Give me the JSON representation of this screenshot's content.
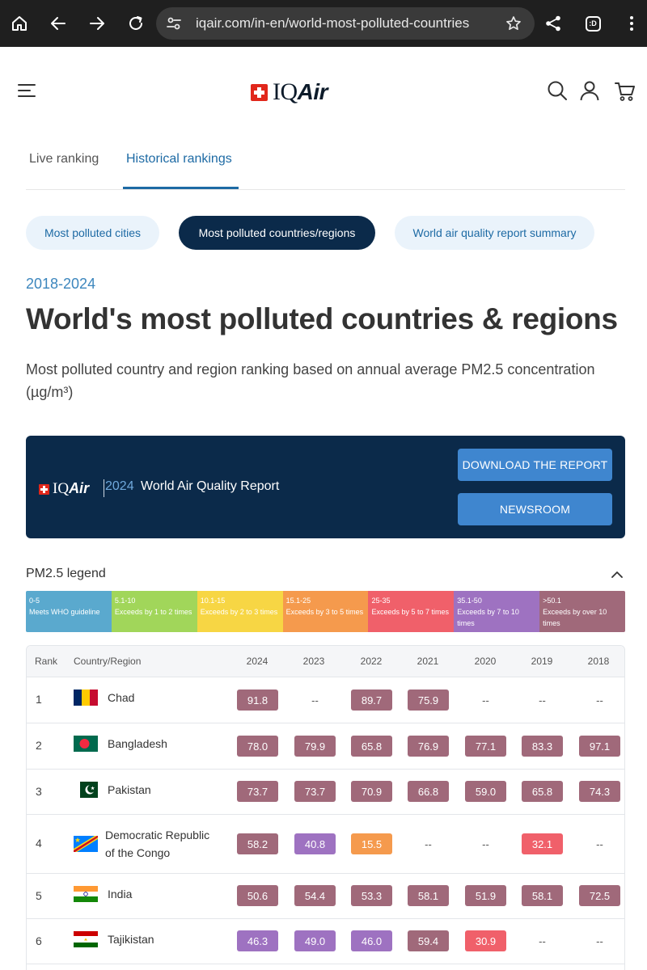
{
  "browser": {
    "url": "iqair.com/in-en/world-most-polluted-countries",
    "tab_count": ":D"
  },
  "brand": {
    "name_plain": "IQ",
    "name_italic": "Air"
  },
  "tabs": [
    {
      "label": "Live ranking",
      "active": false
    },
    {
      "label": "Historical rankings",
      "active": true
    }
  ],
  "pills": [
    {
      "label": "Most polluted cities",
      "active": false
    },
    {
      "label": "Most polluted countries/regions",
      "active": true
    },
    {
      "label": "World air quality report summary",
      "active": false
    }
  ],
  "page": {
    "range": "2018-2024",
    "title": "World's most polluted countries & regions",
    "description": "Most polluted country and region ranking based on annual average PM2.5 concentration (µg/m³)"
  },
  "banner": {
    "year": "2024",
    "title": "World Air Quality Report",
    "download_label": "DOWNLOAD THE REPORT",
    "newsroom_label": "NEWSROOM"
  },
  "legend": {
    "title": "PM2.5 legend",
    "segments": [
      {
        "range": "0-5",
        "label": "Meets WHO guideline",
        "color": "#5aa9ce"
      },
      {
        "range": "5.1-10",
        "label": "Exceeds by 1 to 2 times",
        "color": "#a1d65a"
      },
      {
        "range": "10.1-15",
        "label": "Exceeds by 2 to 3 times",
        "color": "#f7d644"
      },
      {
        "range": "15.1-25",
        "label": "Exceeds by 3 to 5 times",
        "color": "#f59a4d"
      },
      {
        "range": "25-35",
        "label": "Exceeds by 5 to 7 times",
        "color": "#f0606a"
      },
      {
        "range": "35.1-50",
        "label": "Exceeds by 7 to 10 times",
        "color": "#9e72c1"
      },
      {
        "range": ">50.1",
        "label": "Exceeds by over 10 times",
        "color": "#a0697a"
      }
    ]
  },
  "table": {
    "headers": {
      "rank": "Rank",
      "country": "Country/Region",
      "years": [
        "2024",
        "2023",
        "2022",
        "2021",
        "2020",
        "2019",
        "2018"
      ]
    },
    "rows": [
      {
        "rank": "1",
        "flag": "chad",
        "country": "Chad",
        "values": [
          "91.8",
          "--",
          "89.7",
          "75.9",
          "--",
          "--",
          "--"
        ],
        "colors": [
          "#a0697a",
          null,
          "#a0697a",
          "#a0697a",
          null,
          null,
          null
        ]
      },
      {
        "rank": "2",
        "flag": "bangladesh",
        "country": "Bangladesh",
        "values": [
          "78.0",
          "79.9",
          "65.8",
          "76.9",
          "77.1",
          "83.3",
          "97.1"
        ],
        "colors": [
          "#a0697a",
          "#a0697a",
          "#a0697a",
          "#a0697a",
          "#a0697a",
          "#a0697a",
          "#a0697a"
        ]
      },
      {
        "rank": "3",
        "flag": "pakistan",
        "country": "Pakistan",
        "values": [
          "73.7",
          "73.7",
          "70.9",
          "66.8",
          "59.0",
          "65.8",
          "74.3"
        ],
        "colors": [
          "#a0697a",
          "#a0697a",
          "#a0697a",
          "#a0697a",
          "#a0697a",
          "#a0697a",
          "#a0697a"
        ]
      },
      {
        "rank": "4",
        "flag": "drc",
        "country_line1": "Democratic Republic",
        "country_line2": "of the Congo",
        "values": [
          "58.2",
          "40.8",
          "15.5",
          "--",
          "--",
          "32.1",
          "--"
        ],
        "colors": [
          "#a0697a",
          "#9e72c1",
          "#f59a4d",
          null,
          null,
          "#f0606a",
          null
        ]
      },
      {
        "rank": "5",
        "flag": "india",
        "country": "India",
        "values": [
          "50.6",
          "54.4",
          "53.3",
          "58.1",
          "51.9",
          "58.1",
          "72.5"
        ],
        "colors": [
          "#a0697a",
          "#a0697a",
          "#a0697a",
          "#a0697a",
          "#a0697a",
          "#a0697a",
          "#a0697a"
        ]
      },
      {
        "rank": "6",
        "flag": "tajikistan",
        "country": "Tajikistan",
        "values": [
          "46.3",
          "49.0",
          "46.0",
          "59.4",
          "30.9",
          "--",
          "--"
        ],
        "colors": [
          "#9e72c1",
          "#9e72c1",
          "#9e72c1",
          "#a0697a",
          "#f0606a",
          null,
          null
        ]
      }
    ]
  }
}
